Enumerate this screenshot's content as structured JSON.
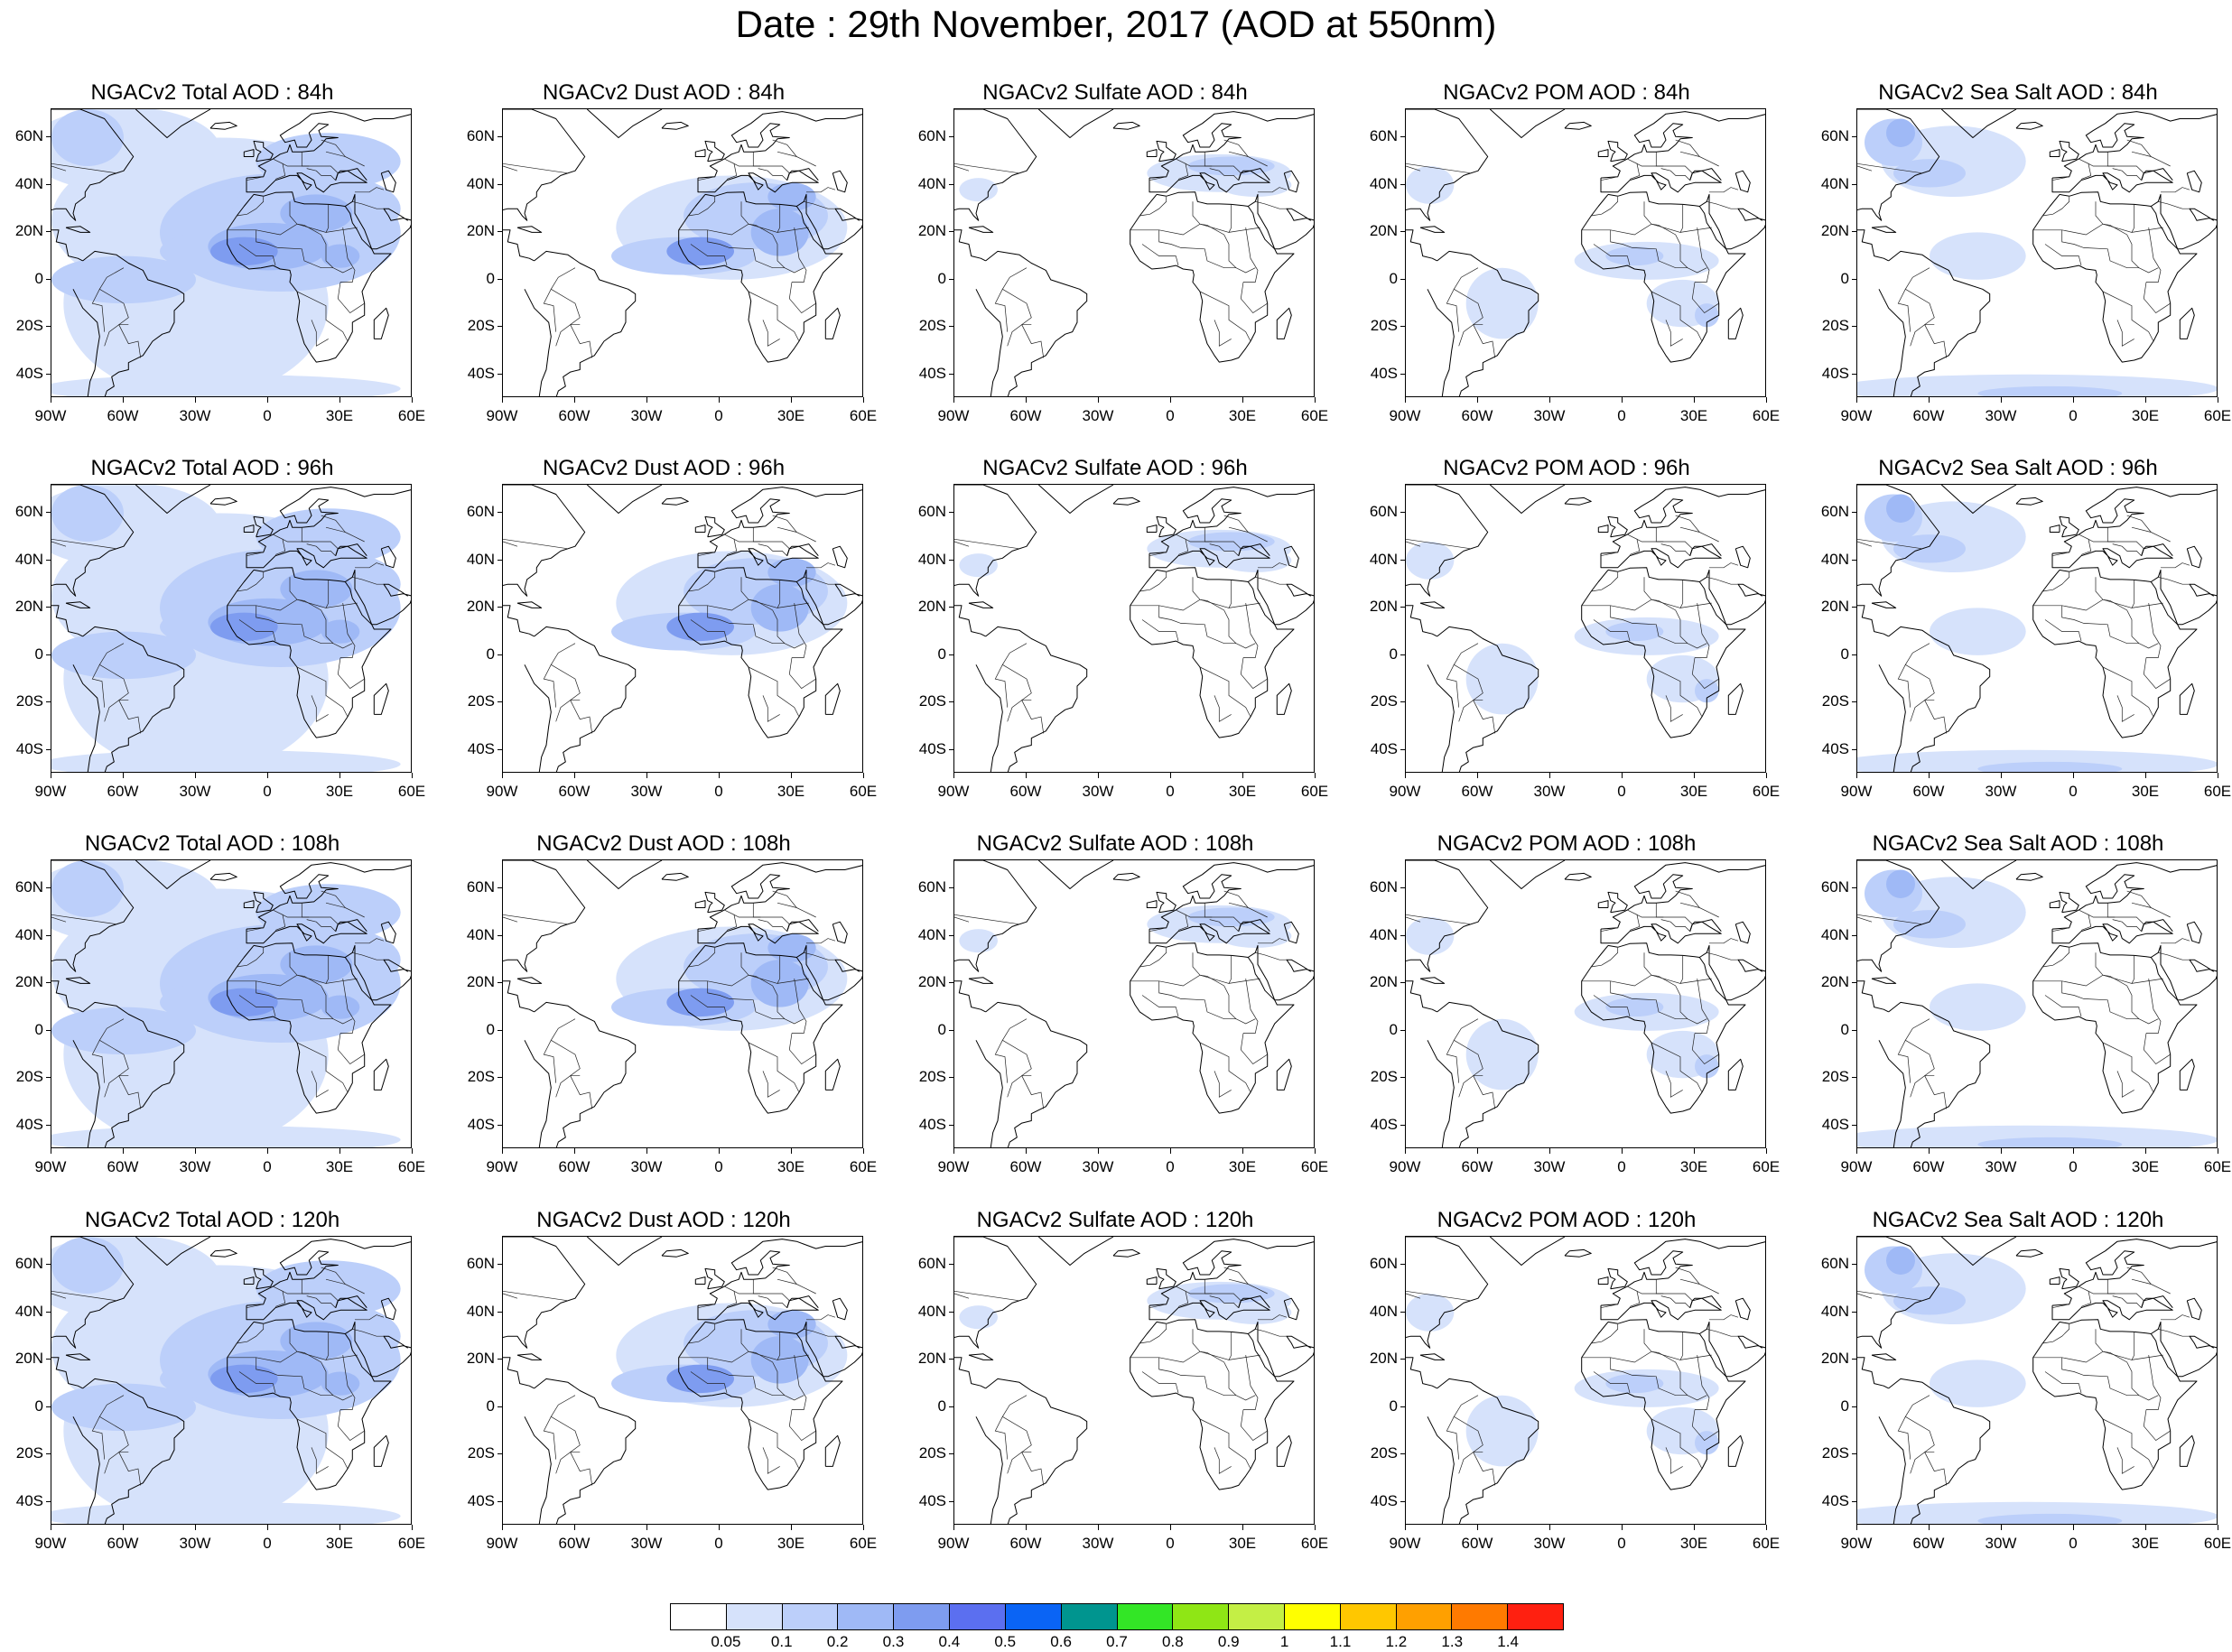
{
  "title": "Date : 29th November, 2017 (AOD at 550nm)",
  "lat_labels": [
    "60N",
    "40N",
    "20N",
    "0",
    "20S",
    "40S"
  ],
  "lon_labels": [
    "90W",
    "60W",
    "30W",
    "0",
    "30E",
    "60E"
  ],
  "columns": [
    {
      "key": "total",
      "palette": [
        "#d6e2fb",
        "#bccffa",
        "#9fb9f6",
        "#7e9cf0"
      ]
    },
    {
      "key": "dust",
      "palette": [
        "#d6e2fb",
        "#bccffa",
        "#9fb9f6",
        "#7e9cf0"
      ]
    },
    {
      "key": "sulfate",
      "palette": [
        "#d6e2fb",
        "#bccffa"
      ]
    },
    {
      "key": "pom",
      "palette": [
        "#d6e2fb",
        "#bccffa",
        "#9fb9f6"
      ]
    },
    {
      "key": "seasalt",
      "palette": [
        "#d6e2fb",
        "#bccffa",
        "#9fb9f6",
        "#7e9cf0"
      ]
    }
  ],
  "panels": [
    [
      "NGACv2 Total AOD : 84h",
      "NGACv2 Dust AOD : 84h",
      "NGACv2 Sulfate AOD : 84h",
      "NGACv2 POM AOD : 84h",
      "NGACv2 Sea Salt AOD : 84h"
    ],
    [
      "NGACv2 Total AOD : 96h",
      "NGACv2 Dust AOD : 96h",
      "NGACv2 Sulfate AOD : 96h",
      "NGACv2 POM AOD : 96h",
      "NGACv2 Sea Salt AOD : 96h"
    ],
    [
      "NGACv2 Total AOD : 108h",
      "NGACv2 Dust AOD : 108h",
      "NGACv2 Sulfate AOD : 108h",
      "NGACv2 POM AOD : 108h",
      "NGACv2 Sea Salt AOD : 108h"
    ],
    [
      "NGACv2 Total AOD : 120h",
      "NGACv2 Dust AOD : 120h",
      "NGACv2 Sulfate AOD : 120h",
      "NGACv2 POM AOD : 120h",
      "NGACv2 Sea Salt  AOD : 120h"
    ]
  ],
  "colorbar": {
    "colors": [
      "#ffffff",
      "#d6e2fb",
      "#bccffa",
      "#9fb9f6",
      "#7e9cf0",
      "#5b6ff0",
      "#0a64f5",
      "#00958f",
      "#33e626",
      "#8fe615",
      "#c4ef45",
      "#ffff00",
      "#ffc700",
      "#ffa000",
      "#ff7a00",
      "#ff2010"
    ],
    "labels": [
      "0.05",
      "0.1",
      "0.2",
      "0.3",
      "0.4",
      "0.5",
      "0.6",
      "0.7",
      "0.8",
      "0.9",
      "1",
      "1.1",
      "1.2",
      "1.3",
      "1.4"
    ]
  }
}
